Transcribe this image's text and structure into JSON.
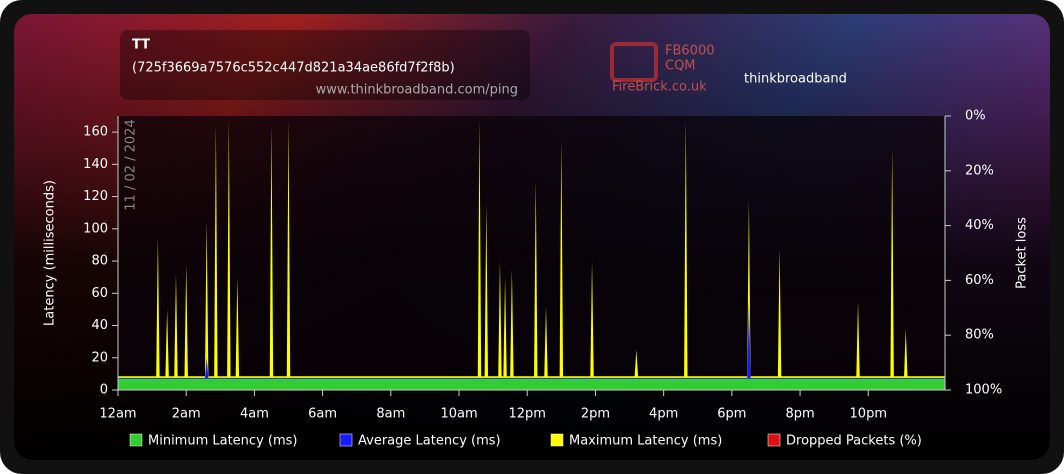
{
  "header": {
    "title": "TT",
    "subtitle": "(725f3669a7576c552c447d821a34ae86fd7f2f8b)",
    "url": "www.thinkbroadband.com/ping",
    "logo_left": {
      "line1": "FB6000",
      "line2": "CQM",
      "site": "FireBrick.co.uk"
    },
    "logo_right": "thinkbroadband"
  },
  "chart_data": {
    "type": "area",
    "date": "11 / 02 / 2024",
    "y_label": "Latency (milliseconds)",
    "y2_label": "Packet loss",
    "xlim": [
      0,
      24.25
    ],
    "xticks": [
      {
        "value": 0,
        "label": "12am"
      },
      {
        "value": 2,
        "label": "2am"
      },
      {
        "value": 4,
        "label": "4am"
      },
      {
        "value": 6,
        "label": "6am"
      },
      {
        "value": 8,
        "label": "8am"
      },
      {
        "value": 10,
        "label": "10am"
      },
      {
        "value": 12,
        "label": "12pm"
      },
      {
        "value": 14,
        "label": "2pm"
      },
      {
        "value": 16,
        "label": "4pm"
      },
      {
        "value": 18,
        "label": "6pm"
      },
      {
        "value": 20,
        "label": "8pm"
      },
      {
        "value": 22,
        "label": "10pm"
      }
    ],
    "ylim": [
      0,
      170
    ],
    "yticks": [
      0,
      20,
      40,
      60,
      80,
      100,
      120,
      140,
      160
    ],
    "y2lim": [
      100,
      0
    ],
    "y2ticks": [
      {
        "value": 0,
        "label": "0%"
      },
      {
        "value": 20,
        "label": "20%"
      },
      {
        "value": 40,
        "label": "40%"
      },
      {
        "value": 60,
        "label": "60%"
      },
      {
        "value": 80,
        "label": "80%"
      },
      {
        "value": 100,
        "label": "100%"
      }
    ],
    "x": [
      0,
      1.12,
      1.17,
      1.22,
      1.39,
      1.44,
      1.49,
      1.65,
      1.7,
      1.75,
      1.95,
      2,
      2.05,
      2.55,
      2.6,
      2.65,
      2.82,
      2.87,
      2.92,
      3.2,
      3.25,
      3.3,
      3.45,
      3.5,
      3.55,
      4.45,
      4.5,
      4.55,
      4.95,
      5,
      5.05,
      10.55,
      10.6,
      10.65,
      10.75,
      10.8,
      10.85,
      11.15,
      11.2,
      11.25,
      11.3,
      11.35,
      11.4,
      11.5,
      11.55,
      11.6,
      12.2,
      12.25,
      12.3,
      12.5,
      12.55,
      12.6,
      12.95,
      13,
      13.05,
      13.85,
      13.9,
      13.95,
      15.15,
      15.2,
      15.25,
      16.6,
      16.65,
      16.7,
      18.45,
      18.5,
      18.55,
      19.35,
      19.4,
      19.45,
      21.65,
      21.7,
      21.75,
      22.65,
      22.7,
      22.75,
      23.05,
      23.1,
      23.15,
      24.25
    ],
    "series": [
      {
        "name": "Minimum Latency (ms)",
        "color": "#33cc33",
        "values": [
          7,
          7,
          7,
          7,
          7,
          7,
          7,
          7,
          7,
          7,
          7,
          7,
          7,
          7,
          7,
          7,
          7,
          7,
          7,
          7,
          7,
          7,
          7,
          7,
          7,
          7,
          7,
          7,
          7,
          7,
          7,
          7,
          7,
          7,
          7,
          7,
          7,
          7,
          7,
          7,
          7,
          7,
          7,
          7,
          7,
          7,
          7,
          7,
          7,
          7,
          7,
          7,
          7,
          7,
          7,
          7,
          7,
          7,
          7,
          7,
          7,
          7,
          7,
          7,
          7,
          7,
          7,
          7,
          7,
          7,
          7,
          7,
          7,
          7,
          7,
          7,
          7,
          7,
          7,
          7
        ]
      },
      {
        "name": "Average Latency (ms)",
        "color": "#1a1aff",
        "values": [
          7.5,
          7.5,
          7.5,
          7.5,
          7.5,
          7.5,
          7.5,
          7.5,
          7.5,
          7.5,
          7.5,
          7.5,
          7.5,
          7.5,
          20,
          7.5,
          7.5,
          7.5,
          7.5,
          7.5,
          7.5,
          7.5,
          7.5,
          7.5,
          7.5,
          7.5,
          7.5,
          7.5,
          7.5,
          7.5,
          7.5,
          7.5,
          7.5,
          7.5,
          7.5,
          7.5,
          7.5,
          7.5,
          7.5,
          7.5,
          7.5,
          7.5,
          7.5,
          7.5,
          7.5,
          7.5,
          7.5,
          7.5,
          7.5,
          7.5,
          7.5,
          7.5,
          7.5,
          7.5,
          7.5,
          7.5,
          7.5,
          7.5,
          7.5,
          7.5,
          7.5,
          7.5,
          7.5,
          7.5,
          7.5,
          55,
          7.5,
          7.5,
          7.5,
          7.5,
          7.5,
          7.5,
          7.5,
          7.5,
          7.5,
          7.5,
          7.5,
          7.5,
          7.5,
          7.5
        ]
      },
      {
        "name": "Maximum Latency (ms)",
        "color": "#ffff00",
        "values": [
          8.5,
          8.5,
          95,
          8.5,
          8.5,
          50,
          8.5,
          8.5,
          72,
          8.5,
          8.5,
          78,
          8.5,
          8.5,
          105,
          8.5,
          8.5,
          165,
          8.5,
          8.5,
          168,
          8.5,
          8.5,
          70,
          8.5,
          8.5,
          165,
          8.5,
          8.5,
          168,
          8.5,
          8.5,
          168,
          8.5,
          8.5,
          115,
          8.5,
          8.5,
          80,
          8.5,
          8.5,
          70,
          8.5,
          8.5,
          75,
          8.5,
          8.5,
          130,
          8.5,
          8.5,
          52,
          8.5,
          8.5,
          155,
          8.5,
          8.5,
          80,
          8.5,
          8.5,
          25,
          8.5,
          8.5,
          168,
          8.5,
          8.5,
          118,
          8.5,
          8.5,
          88,
          8.5,
          8.5,
          55,
          8.5,
          8.5,
          150,
          8.5,
          8.5,
          38,
          8.5,
          8.5
        ]
      },
      {
        "name": "Dropped Packets (%)",
        "color": "#dd1111",
        "axis": "y2",
        "values": [
          0,
          0,
          0,
          0,
          0,
          0,
          0,
          0,
          0,
          0,
          0,
          0,
          0,
          0,
          0,
          0,
          0,
          0,
          0,
          0,
          0,
          0,
          0,
          0,
          0,
          0,
          0,
          0,
          0,
          0,
          0,
          0,
          0,
          0,
          0,
          0,
          0,
          0,
          0,
          0,
          0,
          0,
          0,
          0,
          0,
          0,
          0,
          0,
          0,
          0,
          0,
          0,
          0,
          0,
          0,
          0,
          0,
          0,
          0,
          0,
          0,
          0,
          0,
          0,
          0,
          0,
          0,
          0,
          0,
          0,
          0,
          0,
          0,
          0,
          0,
          0,
          0,
          0,
          0,
          0
        ]
      }
    ]
  }
}
